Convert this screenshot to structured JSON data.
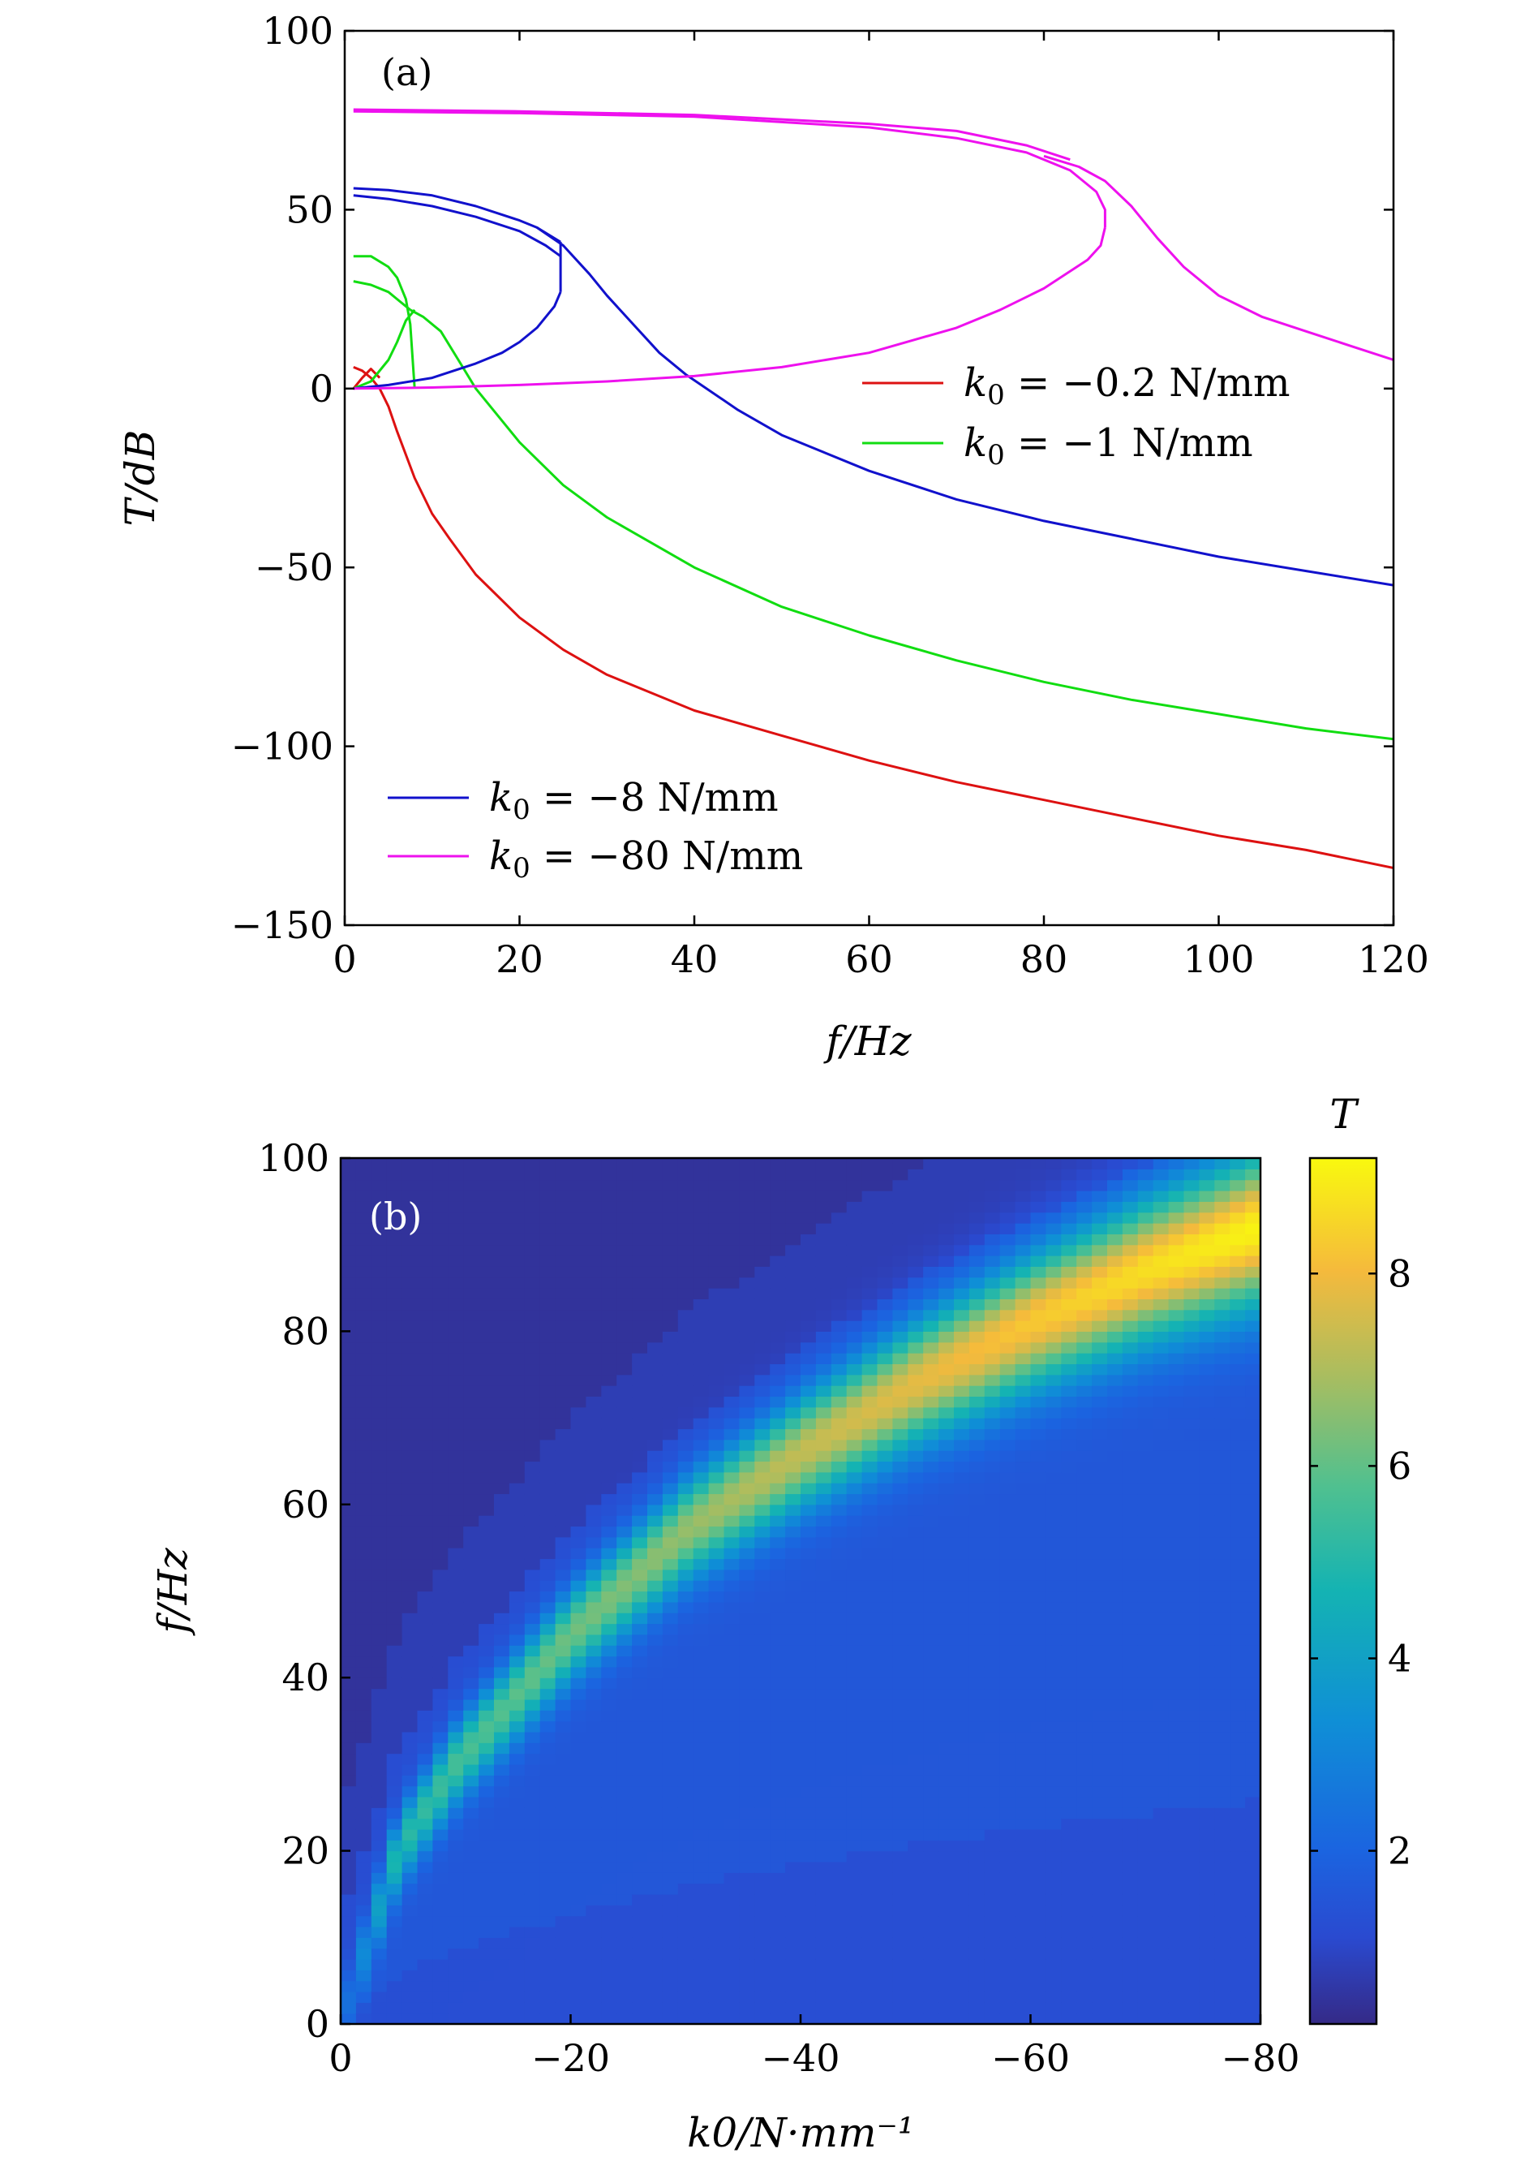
{
  "chart_data": [
    {
      "type": "line",
      "panel_label": "(a)",
      "xlabel": "f/Hz",
      "ylabel": "T/dB",
      "xlim": [
        0,
        120
      ],
      "ylim": [
        -150,
        100
      ],
      "xticks": [
        0,
        20,
        40,
        60,
        80,
        100,
        120
      ],
      "yticks": [
        -150,
        -100,
        -50,
        0,
        50,
        100
      ],
      "grid": false,
      "legend_groups": [
        {
          "placement": "center-right",
          "entries": [
            "k0 = -0.2 N/mm",
            "k0 = -1 N/mm"
          ]
        },
        {
          "placement": "bottom-left",
          "entries": [
            "k0 = -8 N/mm",
            "k0 = -80 N/mm"
          ]
        }
      ],
      "series": [
        {
          "name": "k0 = -0.2 N/mm",
          "color": "#dd1111",
          "branches": [
            {
              "x": [
                1,
                2,
                3,
                4
              ],
              "y": [
                0,
                3,
                5.5,
                3
              ]
            },
            {
              "x": [
                1,
                2,
                3,
                4,
                5,
                6,
                8,
                10,
                12,
                15,
                20,
                25,
                30,
                40,
                50,
                60,
                70,
                80,
                90,
                100,
                110,
                120
              ],
              "y": [
                6,
                5,
                3,
                0,
                -5,
                -12,
                -25,
                -35,
                -42,
                -52,
                -64,
                -73,
                -80,
                -90,
                -97,
                -104,
                -110,
                -115,
                -120,
                -125,
                -129,
                -134
              ]
            }
          ]
        },
        {
          "name": "k0 = -1 N/mm",
          "color": "#11dd11",
          "branches": [
            {
              "x": [
                1,
                3,
                5,
                6,
                7,
                7.5
              ],
              "y": [
                30,
                29,
                27,
                25,
                23,
                22
              ]
            },
            {
              "x": [
                1,
                3,
                5,
                6,
                7,
                7.5,
                8
              ],
              "y": [
                37,
                37,
                34,
                31,
                25,
                18,
                0
              ]
            },
            {
              "x": [
                1,
                3,
                5,
                6,
                7,
                8
              ],
              "y": [
                0,
                2,
                8,
                13,
                19,
                22
              ]
            },
            {
              "x": [
                7.5,
                9,
                11,
                13,
                15,
                20,
                25,
                30,
                40,
                50,
                60,
                70,
                80,
                90,
                100,
                110,
                120
              ],
              "y": [
                22,
                20,
                16,
                8,
                0,
                -15,
                -27,
                -36,
                -50,
                -61,
                -69,
                -76,
                -82,
                -87,
                -91,
                -95,
                -98
              ]
            }
          ]
        },
        {
          "name": "k0 = -8 N/mm",
          "color": "#1111cc",
          "branches": [
            {
              "x": [
                1,
                5,
                10,
                15,
                20,
                23,
                24.7
              ],
              "y": [
                54,
                53,
                51,
                48,
                44,
                40,
                37
              ]
            },
            {
              "x": [
                1,
                5,
                10,
                15,
                20,
                22,
                24.7
              ],
              "y": [
                56,
                55.5,
                54,
                51,
                47,
                45,
                41
              ]
            },
            {
              "x": [
                24.7,
                24.7
              ],
              "y": [
                27,
                41
              ]
            },
            {
              "x": [
                1,
                5,
                10,
                15,
                18,
                20,
                22,
                24,
                24.7
              ],
              "y": [
                0,
                1,
                3,
                7,
                10,
                13,
                17,
                23,
                27
              ]
            },
            {
              "x": [
                22,
                25,
                28,
                30,
                33,
                36,
                39,
                45,
                50,
                60,
                70,
                80,
                90,
                100,
                110,
                120
              ],
              "y": [
                45,
                40,
                32,
                26,
                18,
                10,
                4,
                -6,
                -13,
                -23,
                -31,
                -37,
                -42,
                -47,
                -51,
                -55
              ]
            }
          ]
        },
        {
          "name": "k0 = -80 N/mm",
          "color": "#ee11ee",
          "branches": [
            {
              "x": [
                1,
                20,
                40,
                60,
                70,
                78,
                83,
                86,
                87,
                87
              ],
              "y": [
                77.5,
                77,
                76,
                73,
                70,
                66,
                61,
                55,
                50,
                45
              ]
            },
            {
              "x": [
                1,
                20,
                40,
                60,
                70,
                78,
                83
              ],
              "y": [
                78,
                77.5,
                76.5,
                74,
                72,
                68,
                64
              ]
            },
            {
              "x": [
                87,
                86.5,
                85,
                80,
                75,
                70,
                60,
                50,
                40,
                30,
                20,
                10,
                1
              ],
              "y": [
                45,
                40,
                36,
                28,
                22,
                17,
                10,
                6,
                3.5,
                2,
                1,
                0.3,
                0
              ]
            },
            {
              "x": [
                80,
                84,
                87,
                90,
                93,
                96,
                100,
                105,
                110,
                115,
                120
              ],
              "y": [
                65,
                62,
                58,
                51,
                42,
                34,
                26,
                20,
                16,
                12,
                8
              ]
            }
          ]
        }
      ]
    },
    {
      "type": "heatmap",
      "panel_label": "(b)",
      "xlabel": "k0/N·mm⁻¹",
      "ylabel": "f/Hz",
      "xlim": [
        0,
        -80
      ],
      "ylim": [
        0,
        100
      ],
      "xticks": [
        0,
        -20,
        -40,
        -60,
        -80
      ],
      "yticks": [
        0,
        20,
        40,
        60,
        80,
        100
      ],
      "colorbar": {
        "label": "T",
        "range": [
          0.2,
          9.2
        ],
        "ticks": [
          2,
          4,
          6,
          8
        ],
        "colormap": "parula"
      },
      "ridge": {
        "description_values_k0": [
          0,
          -5,
          -10,
          -20,
          -30,
          -40,
          -50,
          -60,
          -70,
          -80
        ],
        "peak_f": [
          0,
          20,
          30,
          45,
          57,
          66,
          74,
          81,
          87,
          92
        ],
        "peak_T": [
          2,
          5,
          5.6,
          6.2,
          6.7,
          7.3,
          7.8,
          8.3,
          8.7,
          9.1
        ]
      }
    }
  ]
}
